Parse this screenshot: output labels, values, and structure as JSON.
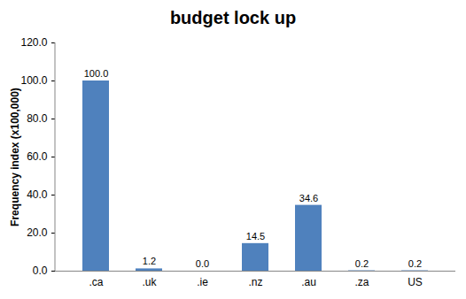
{
  "chart_data": {
    "type": "bar",
    "title": "budget lock up",
    "y_label": "Frequency index (x100,000)",
    "categories": [
      ".ca",
      ".uk",
      ".ie",
      ".nz",
      ".au",
      ".za",
      "US"
    ],
    "values": [
      100.0,
      1.2,
      0.0,
      14.5,
      34.6,
      0.2,
      0.2
    ],
    "value_labels": [
      "100.0",
      "1.2",
      "0.0",
      "14.5",
      "34.6",
      "0.2",
      "0.2"
    ],
    "color": "#4f81bd",
    "ylim": [
      0,
      120
    ],
    "yticks": [
      {
        "value": 0,
        "label": "0.0"
      },
      {
        "value": 20,
        "label": "20.0"
      },
      {
        "value": 40,
        "label": "40.0"
      },
      {
        "value": 60,
        "label": "60.0"
      },
      {
        "value": 80,
        "label": "80.0"
      },
      {
        "value": 100,
        "label": "100.0"
      },
      {
        "value": 120,
        "label": "120.0"
      }
    ],
    "grid": false,
    "data_labels": true
  }
}
